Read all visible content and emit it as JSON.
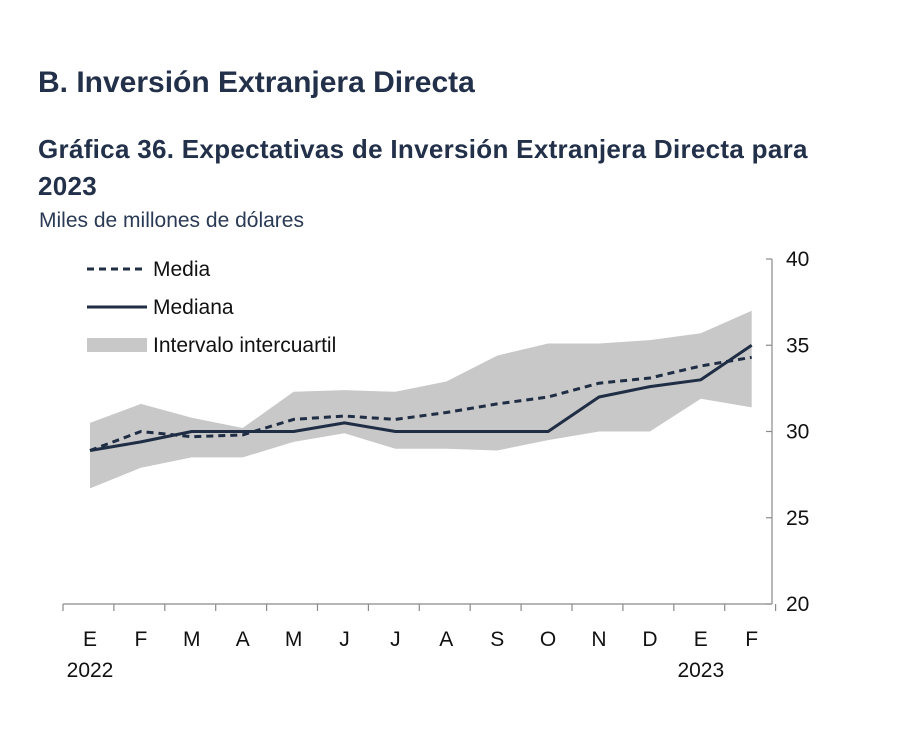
{
  "section": {
    "heading": "B.  Inversión Extranjera Directa"
  },
  "chart_data": {
    "type": "line",
    "title": "Gráfica 36. Expectativas de Inversión Extranjera Directa para 2023",
    "subtitle": "Miles de millones de dólares",
    "x": [
      "E",
      "F",
      "M",
      "A",
      "M",
      "J",
      "J",
      "A",
      "S",
      "O",
      "N",
      "D",
      "E",
      "F"
    ],
    "year_labels": [
      {
        "text": "2022",
        "index": 0
      },
      {
        "text": "2023",
        "index": 12
      }
    ],
    "ylim": [
      20,
      40
    ],
    "yticks": [
      20,
      25,
      30,
      35,
      40
    ],
    "band": {
      "name": "Intervalo intercuartil",
      "color": "#c8c8c8",
      "lower": [
        26.7,
        27.9,
        28.5,
        28.5,
        29.4,
        29.9,
        29.0,
        29.0,
        28.9,
        29.5,
        30.0,
        30.0,
        31.9,
        31.4
      ],
      "upper": [
        30.5,
        31.6,
        30.8,
        30.2,
        32.3,
        32.4,
        32.3,
        32.9,
        34.4,
        35.1,
        35.1,
        35.3,
        35.7,
        37.0
      ]
    },
    "series": [
      {
        "name": "Media",
        "style": "dashed",
        "color": "#1f2d45",
        "values": [
          28.9,
          30.0,
          29.7,
          29.8,
          30.7,
          30.9,
          30.7,
          31.1,
          31.6,
          32.0,
          32.8,
          33.1,
          33.8,
          34.3
        ]
      },
      {
        "name": "Mediana",
        "style": "solid",
        "color": "#1f2d45",
        "values": [
          28.9,
          29.4,
          30.0,
          30.0,
          30.0,
          30.5,
          30.0,
          30.0,
          30.0,
          30.0,
          32.0,
          32.6,
          33.0,
          35.0
        ]
      }
    ],
    "legend_position": "top-left",
    "y_axis_side": "right",
    "grid": false
  }
}
